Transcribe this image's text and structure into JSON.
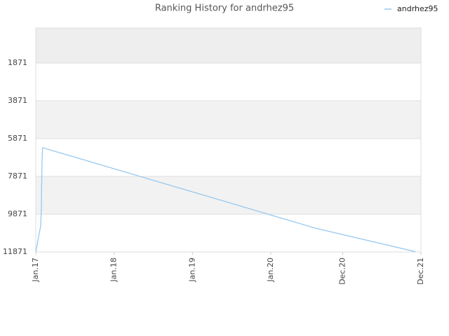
{
  "chart_data": {
    "type": "line",
    "title": "Ranking History for andrhez95",
    "x": [
      "2017-01-01",
      "2017-01-24",
      "2017-01-27",
      "2017-01-30",
      "2017-02-02",
      "2020-07-28",
      "2021-11-04"
    ],
    "series": [
      {
        "name": "andrhez95",
        "color": "#99c9ef",
        "values": [
          11871,
          10464,
          9501,
          7130,
          6352,
          10612,
          11850
        ]
      }
    ],
    "ylim": [
      11871,
      19
    ],
    "yticks": [
      1871,
      3871,
      5871,
      7871,
      9871,
      11871
    ],
    "xlim": [
      "2017-01-01",
      "2021-12-01"
    ],
    "xticks": [
      {
        "value": "2017-01-01",
        "label": "Jan.17"
      },
      {
        "value": "2018-01-01",
        "label": "Jan.18"
      },
      {
        "value": "2019-01-01",
        "label": "Jan.19"
      },
      {
        "value": "2020-01-01",
        "label": "Jan.20"
      },
      {
        "value": "2020-12-01",
        "label": "Dec.20"
      },
      {
        "value": "2021-12-01",
        "label": "Dec.21"
      }
    ],
    "grid": true,
    "legend": "top-right"
  }
}
